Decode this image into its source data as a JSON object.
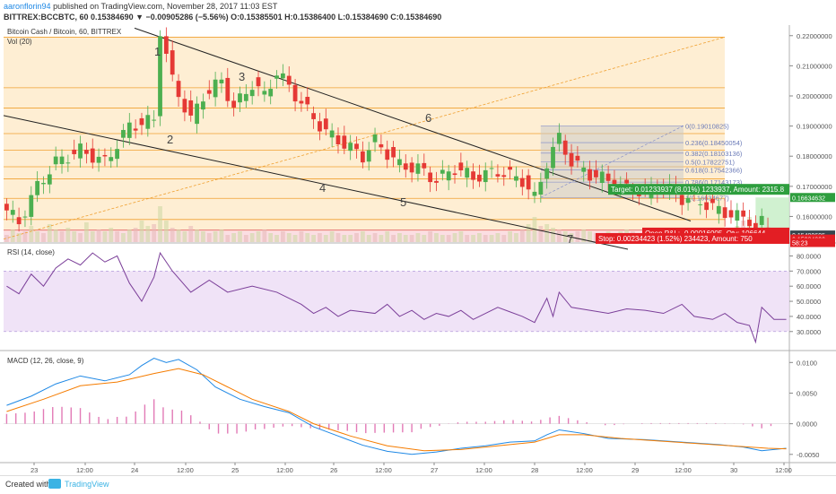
{
  "header": {
    "author": "aaronflorin94",
    "published": "published on TradingView.com, November 28, 2017 11:03 EST",
    "symbol_line": "BITTREX:BCCBTC, 60",
    "change": "0.15384690 ▼ −0.00905286 (−5.56%)",
    "ohlc": "O:0.15385501 H:0.15386400 L:0.15384690 C:0.15384690"
  },
  "pane_titles": {
    "main": "Bitcoin Cash / Bitcoin, 60, BITTREX",
    "volume": "Vol (20)",
    "rsi": "RSI (14, close)",
    "macd": "MACD (12, 26, close, 9)"
  },
  "footer": {
    "created_with": "Created with",
    "brand": "TradingView"
  },
  "colors": {
    "up": "#4caf50",
    "down": "#e53935",
    "rsi": "#7b3f99",
    "macd": "#1e88e5",
    "signal": "#f57c00",
    "hist": "#e27ab6",
    "fib": "#f0a030",
    "target": "#2e9e3e",
    "stop": "#e31e24"
  },
  "chart_data": [
    {
      "type": "candlestick",
      "title": "Bitcoin Cash / Bitcoin, 60, BITTREX",
      "x_ticks": [
        "23",
        "12:00",
        "24",
        "12:00",
        "25",
        "12:00",
        "26",
        "12:00",
        "27",
        "12:00",
        "28",
        "12:00",
        "29",
        "12:00",
        "30",
        "12:00"
      ],
      "y_ticks": [
        "0.22000000",
        "0.21000000",
        "0.20000000",
        "0.19000000",
        "0.18000000",
        "0.17000000",
        "0.16000000"
      ],
      "ylim": [
        0.1515,
        0.2235
      ],
      "close_path": [
        [
          0,
          0.162
        ],
        [
          2,
          0.158
        ],
        [
          5,
          0.17
        ],
        [
          8,
          0.178
        ],
        [
          12,
          0.182
        ],
        [
          16,
          0.178
        ],
        [
          20,
          0.19
        ],
        [
          24,
          0.192
        ],
        [
          25,
          0.222
        ],
        [
          27,
          0.205
        ],
        [
          30,
          0.192
        ],
        [
          32,
          0.2
        ],
        [
          35,
          0.205
        ],
        [
          37,
          0.196
        ],
        [
          40,
          0.204
        ],
        [
          42,
          0.2
        ],
        [
          44,
          0.208
        ],
        [
          46,
          0.203
        ],
        [
          49,
          0.195
        ],
        [
          52,
          0.188
        ],
        [
          55,
          0.184
        ],
        [
          58,
          0.18
        ],
        [
          60,
          0.185
        ],
        [
          62,
          0.181
        ],
        [
          64,
          0.177
        ],
        [
          67,
          0.176
        ],
        [
          70,
          0.172
        ],
        [
          73,
          0.176
        ],
        [
          76,
          0.173
        ],
        [
          80,
          0.175
        ],
        [
          84,
          0.172
        ],
        [
          86,
          0.166
        ],
        [
          88,
          0.178
        ],
        [
          90,
          0.186
        ],
        [
          92,
          0.178
        ],
        [
          95,
          0.174
        ],
        [
          98,
          0.172
        ],
        [
          101,
          0.169
        ],
        [
          104,
          0.168
        ],
        [
          107,
          0.17
        ],
        [
          110,
          0.166
        ],
        [
          113,
          0.165
        ],
        [
          116,
          0.162
        ],
        [
          119,
          0.16
        ],
        [
          121,
          0.159
        ],
        [
          122,
          0.155
        ],
        [
          123,
          0.158
        ],
        [
          124,
          0.154
        ]
      ],
      "wave_labels": [
        "1",
        "2",
        "3",
        "4",
        "5",
        "6",
        "7"
      ],
      "fib_levels": [
        {
          "label": "0(0.19010825)"
        },
        {
          "label": "0.236(0.18450054)"
        },
        {
          "label": "0.382(0.18103136)"
        },
        {
          "label": "0.5(0.17822751)"
        },
        {
          "label": "0.618(0.17542366)"
        },
        {
          "label": "0.786(0.17143173)"
        },
        {
          "label": "1(0.16634677)"
        }
      ],
      "price_tags": [
        {
          "value": "0.16634632",
          "y": 0.1663,
          "color": "#2e9e3e"
        },
        {
          "value": "0.15400695",
          "y": 0.154,
          "color": "#37474f"
        },
        {
          "value": "0.15384690",
          "y": 0.1528,
          "color": "#e31e24"
        },
        {
          "value": "58:23",
          "y": 0.1518,
          "color": "#e31e24"
        }
      ],
      "position": {
        "target": "Target: 0.01233937 (8.01%) 1233937, Amount: 2315.8",
        "open_pnl": "Open P&L: -0.00016005, Qty: 106644",
        "stop": "Stop: 0.00234423 (1.52%) 234423, Amount: 750"
      }
    },
    {
      "type": "line",
      "title": "RSI (14, close)",
      "y_ticks": [
        "80.0000",
        "70.0000",
        "60.0000",
        "50.0000",
        "40.0000",
        "30.0000"
      ],
      "ylim": [
        18,
        88
      ],
      "band": [
        30,
        70
      ],
      "series": [
        {
          "values": [
            [
              0,
              60
            ],
            [
              2,
              55
            ],
            [
              4,
              68
            ],
            [
              6,
              60
            ],
            [
              8,
              72
            ],
            [
              10,
              78
            ],
            [
              12,
              74
            ],
            [
              14,
              82
            ],
            [
              16,
              76
            ],
            [
              18,
              80
            ],
            [
              20,
              62
            ],
            [
              22,
              50
            ],
            [
              24,
              66
            ],
            [
              25,
              82
            ],
            [
              27,
              70
            ],
            [
              30,
              56
            ],
            [
              33,
              64
            ],
            [
              36,
              56
            ],
            [
              40,
              60
            ],
            [
              44,
              56
            ],
            [
              48,
              48
            ],
            [
              50,
              42
            ],
            [
              52,
              46
            ],
            [
              54,
              40
            ],
            [
              56,
              44
            ],
            [
              60,
              42
            ],
            [
              62,
              48
            ],
            [
              64,
              40
            ],
            [
              66,
              44
            ],
            [
              68,
              38
            ],
            [
              70,
              42
            ],
            [
              72,
              40
            ],
            [
              74,
              44
            ],
            [
              76,
              38
            ],
            [
              78,
              42
            ],
            [
              80,
              46
            ],
            [
              82,
              43
            ],
            [
              84,
              40
            ],
            [
              86,
              36
            ],
            [
              88,
              52
            ],
            [
              89,
              40
            ],
            [
              90,
              56
            ],
            [
              92,
              46
            ],
            [
              95,
              44
            ],
            [
              98,
              42
            ],
            [
              101,
              45
            ],
            [
              104,
              44
            ],
            [
              107,
              42
            ],
            [
              110,
              48
            ],
            [
              112,
              40
            ],
            [
              115,
              38
            ],
            [
              117,
              42
            ],
            [
              119,
              36
            ],
            [
              121,
              34
            ],
            [
              122,
              23
            ],
            [
              123,
              46
            ],
            [
              125,
              38
            ],
            [
              127,
              38
            ]
          ]
        }
      ]
    },
    {
      "type": "line",
      "title": "MACD (12, 26, close, 9)",
      "y_ticks": [
        "0.0100",
        "0.0050",
        "0.0000",
        "-0.0050"
      ],
      "ylim": [
        -0.0062,
        0.0118
      ],
      "series": [
        {
          "name": "MACD",
          "values": [
            [
              0,
              0.003
            ],
            [
              4,
              0.0045
            ],
            [
              8,
              0.0065
            ],
            [
              12,
              0.0078
            ],
            [
              16,
              0.007
            ],
            [
              20,
              0.008
            ],
            [
              22,
              0.0095
            ],
            [
              24,
              0.0107
            ],
            [
              26,
              0.01
            ],
            [
              28,
              0.0105
            ],
            [
              31,
              0.0088
            ],
            [
              34,
              0.006
            ],
            [
              38,
              0.004
            ],
            [
              42,
              0.0028
            ],
            [
              46,
              0.0018
            ],
            [
              50,
              -0.0005
            ],
            [
              54,
              -0.002
            ],
            [
              58,
              -0.0035
            ],
            [
              62,
              -0.0045
            ],
            [
              66,
              -0.005
            ],
            [
              70,
              -0.0046
            ],
            [
              74,
              -0.004
            ],
            [
              78,
              -0.0036
            ],
            [
              82,
              -0.003
            ],
            [
              86,
              -0.0028
            ],
            [
              88,
              -0.0018
            ],
            [
              90,
              -0.001
            ],
            [
              94,
              -0.0016
            ],
            [
              98,
              -0.0024
            ],
            [
              104,
              -0.0026
            ],
            [
              110,
              -0.003
            ],
            [
              116,
              -0.0034
            ],
            [
              120,
              -0.0038
            ],
            [
              123,
              -0.0044
            ],
            [
              127,
              -0.004
            ]
          ]
        },
        {
          "name": "Signal",
          "values": [
            [
              0,
              0.002
            ],
            [
              6,
              0.004
            ],
            [
              12,
              0.0062
            ],
            [
              18,
              0.0068
            ],
            [
              24,
              0.0082
            ],
            [
              28,
              0.009
            ],
            [
              32,
              0.008
            ],
            [
              36,
              0.006
            ],
            [
              40,
              0.004
            ],
            [
              46,
              0.002
            ],
            [
              50,
              0.0
            ],
            [
              56,
              -0.002
            ],
            [
              62,
              -0.0036
            ],
            [
              68,
              -0.0044
            ],
            [
              74,
              -0.0042
            ],
            [
              80,
              -0.0036
            ],
            [
              86,
              -0.003
            ],
            [
              90,
              -0.0018
            ],
            [
              94,
              -0.0018
            ],
            [
              100,
              -0.0024
            ],
            [
              106,
              -0.0028
            ],
            [
              112,
              -0.0032
            ],
            [
              118,
              -0.0036
            ],
            [
              124,
              -0.004
            ],
            [
              127,
              -0.0041
            ]
          ]
        }
      ]
    },
    {
      "type": "bar",
      "title": "Vol (20)",
      "values_relative": [
        0.2,
        0.35,
        0.25,
        0.3,
        0.45,
        0.3,
        0.25,
        0.5,
        0.35,
        0.3,
        0.4,
        0.3,
        0.25,
        0.55,
        0.3,
        0.35,
        0.3,
        0.4,
        0.3,
        0.25,
        0.35,
        0.4,
        0.6,
        0.45,
        0.5,
        1.0,
        0.6,
        0.4,
        0.35,
        0.3,
        0.45,
        0.35,
        0.3,
        0.25,
        0.3,
        0.35,
        0.2,
        0.25,
        0.3,
        0.2,
        0.25,
        0.3,
        0.35,
        0.25,
        0.2,
        0.3,
        0.25,
        0.2,
        0.3,
        0.25,
        0.2,
        0.25,
        0.2,
        0.3,
        0.25,
        0.2,
        0.2,
        0.25,
        0.3,
        0.2,
        0.25,
        0.2,
        0.3,
        0.2,
        0.25,
        0.2,
        0.2,
        0.25,
        0.2,
        0.3,
        0.25,
        0.2,
        0.2,
        0.25,
        0.3,
        0.2,
        0.2,
        0.25,
        0.2,
        0.2,
        0.25,
        0.2,
        0.3,
        0.25,
        0.35,
        0.5,
        0.7,
        0.45,
        0.5,
        0.4,
        0.35,
        0.3,
        0.25,
        0.3,
        0.35,
        0.3,
        0.25,
        0.2,
        0.3,
        0.25,
        0.3,
        0.35,
        0.3,
        0.25,
        0.2,
        0.3,
        0.4,
        0.3,
        0.25,
        0.35,
        0.3,
        0.25,
        0.3,
        0.35,
        0.3,
        0.25,
        0.3,
        0.35,
        0.3,
        0.45,
        0.6,
        0.7,
        0.5,
        0.4,
        0.35
      ]
    }
  ]
}
